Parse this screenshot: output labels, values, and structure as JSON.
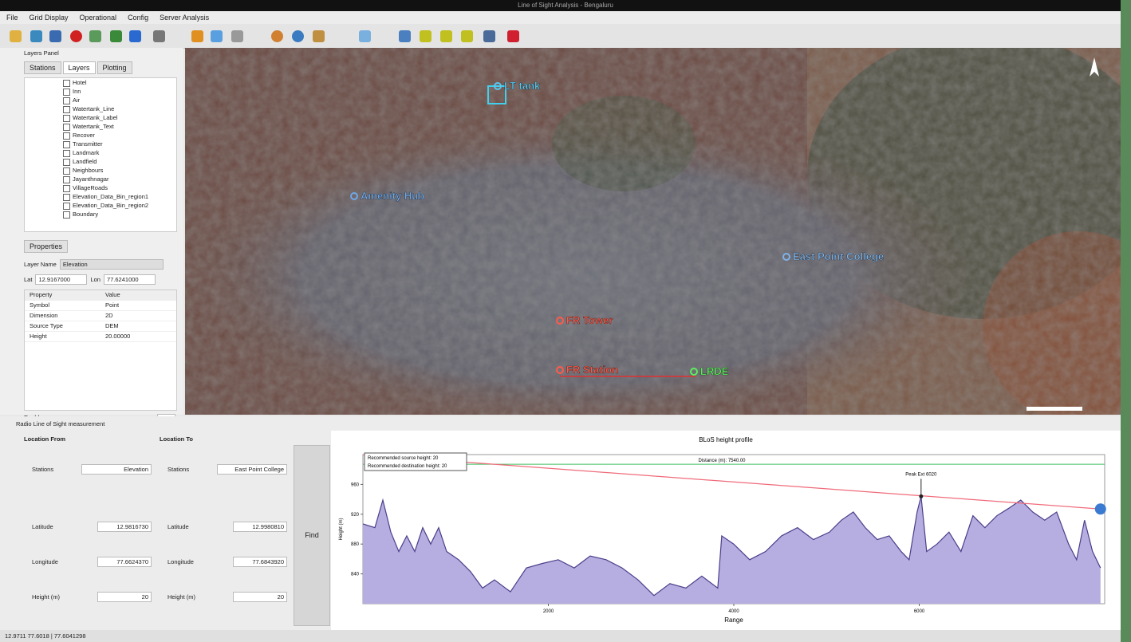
{
  "window": {
    "title": "Line of Sight Analysis - Bengaluru"
  },
  "menu": [
    "File",
    "Grid Display",
    "Operational",
    "Config",
    "Server Analysis"
  ],
  "layers_panel": {
    "title": "Layers Panel",
    "tabs": [
      "Stations",
      "Layers",
      "Plotting"
    ],
    "items": [
      "Hotel",
      "Inn",
      "Air",
      "Watertank_Line",
      "Watertank_Label",
      "Watertank_Text",
      "Recover",
      "Transmitter",
      "Landmark",
      "Landfield",
      "Neighbours",
      "Jayanthnagar",
      "VillageRoads",
      "Elevation_Data_Bin_region1",
      "Elevation_Data_Bin_region2",
      "Boundary"
    ]
  },
  "properties_panel": {
    "title": "Properties",
    "layer_name_label": "Layer Name",
    "layer_name": "Elevation",
    "lat_label": "Lat",
    "lat": "12.9167000",
    "lon_label": "Lon",
    "lon": "77.6241000",
    "columns": [
      "Property",
      "Value"
    ],
    "rows": [
      [
        "Symbol",
        "Point"
      ],
      [
        "Dimension",
        "2D"
      ],
      [
        "Source Type",
        "DEM"
      ],
      [
        "Height",
        "20.00000"
      ]
    ],
    "checkbox": "Enable",
    "apply": "OK"
  },
  "map": {
    "labels": [
      {
        "text": "LT tank",
        "color": "#59c8f0"
      },
      {
        "text": "Amenity Hub",
        "color": "#6fa8e8"
      },
      {
        "text": "East Point College",
        "color": "#7fb3e8"
      },
      {
        "text": "FR Tower",
        "color": "#ff5b4a"
      },
      {
        "text": "FR Station",
        "color": "#ff5b4a"
      },
      {
        "text": "LRDE",
        "color": "#5bf05b"
      }
    ]
  },
  "bottom_panel": {
    "title": "Radio Line of Sight measurement",
    "from": {
      "heading": "Location From",
      "station_label": "Stations",
      "station": "Elevation",
      "lat_label": "Latitude",
      "lat": "12.9816730",
      "lon_label": "Longitude",
      "lon": "77.6624370",
      "height_label": "Height (m)",
      "height": "20"
    },
    "to": {
      "heading": "Location To",
      "station_label": "Stations",
      "station": "East Point College",
      "lat_label": "Latitude",
      "lat": "12.9980810",
      "lon_label": "Longitude",
      "lon": "77.6843920",
      "height_label": "Height (m)",
      "height": "20"
    },
    "find": "Find"
  },
  "status": "12.9711 77.6018 | 77.6041298",
  "chart_data": {
    "type": "area",
    "title": "BLoS height profile",
    "x_label": "Range",
    "y_label": "Height (m)",
    "xlim": [
      0,
      8000
    ],
    "xticks": [
      2000,
      4000,
      6000
    ],
    "ylim": [
      800,
      1000
    ],
    "yticks": [
      840,
      880,
      920,
      960
    ],
    "x": [
      0,
      129,
      215,
      301,
      387,
      473,
      559,
      645,
      731,
      817,
      903,
      1032,
      1161,
      1290,
      1419,
      1591,
      1763,
      1935,
      2107,
      2279,
      2451,
      2623,
      2795,
      2967,
      3139,
      3311,
      3483,
      3655,
      3827,
      3870,
      3999,
      4171,
      4343,
      4515,
      4687,
      4859,
      5031,
      5160,
      5289,
      5418,
      5547,
      5676,
      5805,
      5891,
      5977,
      6020,
      6080,
      6192,
      6321,
      6450,
      6579,
      6708,
      6837,
      6966,
      7095,
      7224,
      7353,
      7482,
      7611,
      7697,
      7783,
      7869,
      7955
    ],
    "series": [
      {
        "name": "Terrain",
        "color": "#b6aee0",
        "line": "#4a3f8a",
        "values": [
          907,
          902,
          939,
          896,
          870,
          891,
          870,
          902,
          880,
          902,
          870,
          859,
          843,
          821,
          832,
          816,
          848,
          854,
          859,
          848,
          864,
          859,
          848,
          832,
          811,
          827,
          821,
          837,
          821,
          891,
          880,
          859,
          870,
          891,
          902,
          886,
          896,
          912,
          923,
          902,
          886,
          891,
          870,
          859,
          923,
          944,
          870,
          880,
          896,
          870,
          918,
          902,
          918,
          928,
          939,
          923,
          912,
          923,
          880,
          859,
          912,
          870,
          848
        ]
      }
    ],
    "sight_line": {
      "name": "Recommended source height: 20",
      "color": "#f06a7a",
      "x": [
        0,
        7955
      ],
      "values": [
        1000,
        927
      ]
    },
    "clearance": {
      "name": "Recommended destination height: 20",
      "color": "#3fbf5f",
      "value": 987
    },
    "distance_label": "Distance (m): 7540.00",
    "peak": {
      "label": "Peak Ext 6020",
      "x": 6020,
      "value": 944
    }
  }
}
